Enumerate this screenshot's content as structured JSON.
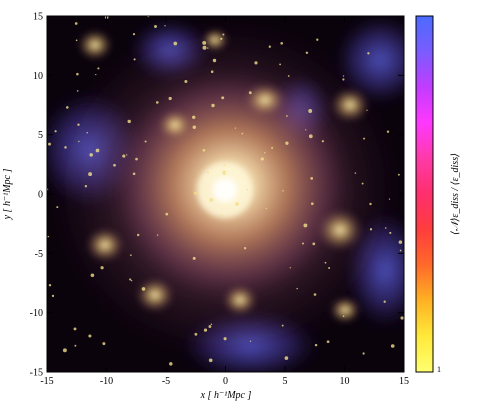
{
  "figure": {
    "x_axis": {
      "label": "x [ h⁻¹Mpc ]",
      "ticks": [
        -15,
        -10,
        -5,
        0,
        5,
        10,
        15
      ],
      "range": [
        -15,
        15
      ]
    },
    "y_axis": {
      "label": "y [ h⁻¹Mpc ]",
      "ticks": [
        -15,
        -10,
        -5,
        0,
        5,
        10,
        15
      ],
      "range": [
        -15,
        15
      ]
    },
    "colorbar": {
      "label": "⟨𝒩⟩ε_diss / ⟨ε_diss⟩",
      "top_tick": "",
      "bottom_tick": "1",
      "colors": [
        "#4b6bff",
        "#7a5cff",
        "#c23cff",
        "#ff38ff",
        "#ff3aa8",
        "#ff2f6d",
        "#ff3d3d",
        "#ff6a2a",
        "#ffb224",
        "#ffe93a",
        "#ffff70"
      ]
    },
    "map": {
      "description_colors": {
        "background": "#08020a",
        "core": "#fff5c8",
        "filament": "#c98a5a",
        "outskirts": "#3f3aa0"
      }
    }
  }
}
